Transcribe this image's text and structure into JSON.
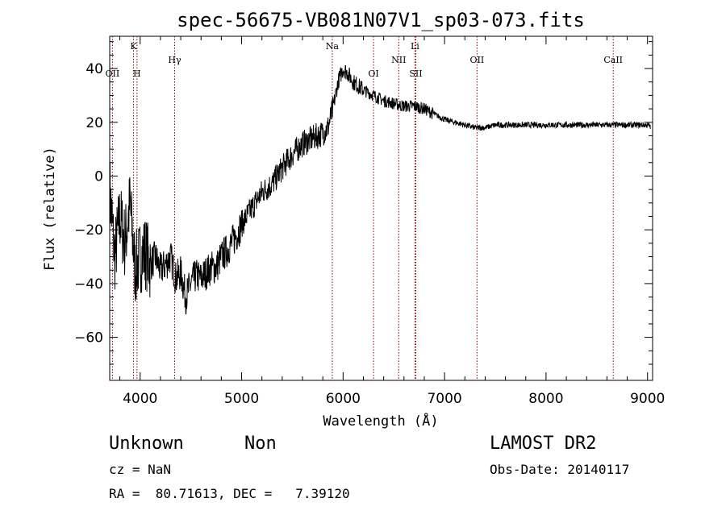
{
  "chart_data": {
    "type": "line",
    "title": "spec-56675-VB081N07V1_sp03-073.fits",
    "xlabel": "Wavelength (Å)",
    "ylabel": "Flux (relative)",
    "xlim": [
      3700,
      9050
    ],
    "ylim": [
      -76,
      52
    ],
    "xticks": [
      4000,
      5000,
      6000,
      7000,
      8000,
      9000
    ],
    "yticks": [
      -60,
      -40,
      -20,
      0,
      20,
      40
    ],
    "grid": false,
    "colors": {
      "spectrum": "#000000",
      "lines": "#8b0000"
    },
    "spectral_lines": [
      {
        "name": "OII",
        "x": 3727,
        "row": 2
      },
      {
        "name": "K",
        "x": 3934,
        "row": 0
      },
      {
        "name": "H",
        "x": 3969,
        "row": 2
      },
      {
        "name": "Hγ",
        "x": 4340,
        "row": 1
      },
      {
        "name": "Na",
        "x": 5893,
        "row": 0
      },
      {
        "name": "OI",
        "x": 6300,
        "row": 2
      },
      {
        "name": "NII",
        "x": 6548,
        "row": 1
      },
      {
        "name": "Li",
        "x": 6708,
        "row": 0
      },
      {
        "name": "SII",
        "x": 6717,
        "row": 2
      },
      {
        "name": "OII",
        "x": 7320,
        "row": 1
      },
      {
        "name": "CaII",
        "x": 8662,
        "row": 1
      }
    ],
    "series": [
      {
        "x": [
          3700,
          3750,
          3800,
          3850,
          3900,
          3950,
          4000,
          4050,
          4100,
          4150,
          4200,
          4250,
          4300,
          4350,
          4400,
          4450,
          4500,
          4550,
          4600,
          4650,
          4700,
          4750,
          4800,
          4850,
          4900,
          4950,
          5000,
          5100,
          5200,
          5300,
          5400,
          5500,
          5600,
          5700,
          5800,
          5850,
          5900,
          5950,
          6000,
          6050,
          6100,
          6200,
          6300,
          6400,
          6500,
          6600,
          6700,
          6800,
          6900,
          7000,
          7100,
          7200,
          7300,
          7400,
          7500,
          7600,
          7700,
          7800,
          7900,
          8000,
          8200,
          8400,
          8600,
          8800,
          9000,
          9050
        ],
        "y": [
          -5,
          -30,
          -15,
          -25,
          -10,
          -35,
          -30,
          -28,
          -33,
          -30,
          -35,
          -33,
          -30,
          -38,
          -36,
          -45,
          -40,
          -37,
          -38,
          -36,
          -34,
          -34,
          -30,
          -28,
          -25,
          -22,
          -18,
          -12,
          -6,
          -3,
          3,
          8,
          12,
          14,
          16,
          18,
          25,
          35,
          40,
          38,
          35,
          32,
          30,
          28,
          27,
          26,
          26,
          25,
          23,
          21,
          20,
          19,
          18,
          18,
          19,
          19,
          19,
          19,
          19,
          19,
          19,
          19,
          19,
          19,
          19,
          18
        ]
      }
    ]
  },
  "info": {
    "object_class": "Unknown",
    "object_subclass": "Non",
    "survey": "LAMOST DR2",
    "cz": "cz = NaN",
    "obs_date": "Obs-Date: 20140117",
    "coords": "RA =  80.71613, DEC =   7.39120"
  }
}
